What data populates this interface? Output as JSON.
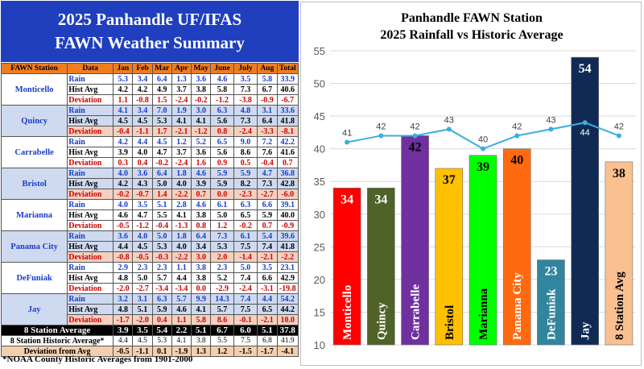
{
  "summary": {
    "title_line1": "2025 Panhandle UF/IFAS",
    "title_line2": "FAWN Weather Summary",
    "headers": [
      "FAWN Station",
      "Data",
      "Jan",
      "Feb",
      "Mar",
      "Apr",
      "May",
      "June",
      "July",
      "Aug",
      "Total"
    ],
    "row_labels": [
      "Rain",
      "Hist Avg",
      "Deviation"
    ],
    "stations": [
      {
        "name": "Monticello",
        "rain": [
          "5.3",
          "3.4",
          "6.4",
          "1.3",
          "3.6",
          "4.6",
          "3.5",
          "5.8",
          "33.9"
        ],
        "hist": [
          "4.2",
          "4.2",
          "4.9",
          "3.7",
          "3.8",
          "5.8",
          "7.3",
          "6.7",
          "40.6"
        ],
        "dev": [
          "1.1",
          "-0.8",
          "1.5",
          "-2.4",
          "-0.2",
          "-1.2",
          "-3.8",
          "-0.9",
          "-6.7"
        ]
      },
      {
        "name": "Quincy",
        "rain": [
          "4.1",
          "3.4",
          "7.0",
          "1.9",
          "3.0",
          "6.3",
          "4.8",
          "3.1",
          "33.6"
        ],
        "hist": [
          "4.5",
          "4.5",
          "5.3",
          "4.1",
          "4.1",
          "5.6",
          "7.3",
          "6.4",
          "41.8"
        ],
        "dev": [
          "-0.4",
          "-1.1",
          "1.7",
          "-2.1",
          "-1.2",
          "0.8",
          "-2.4",
          "-3.3",
          "-8.1"
        ]
      },
      {
        "name": "Carrabelle",
        "rain": [
          "4.2",
          "4.4",
          "4.5",
          "1.2",
          "5.2",
          "6.5",
          "9.0",
          "7.2",
          "42.2"
        ],
        "hist": [
          "3.9",
          "4.0",
          "4.7",
          "3.7",
          "3.6",
          "5.6",
          "8.6",
          "7.6",
          "41.6"
        ],
        "dev": [
          "0.3",
          "0.4",
          "-0.2",
          "-2.4",
          "1.6",
          "0.9",
          "0.5",
          "-0.4",
          "0.7"
        ]
      },
      {
        "name": "Bristol",
        "rain": [
          "4.0",
          "3.6",
          "6.4",
          "1.8",
          "4.6",
          "5.9",
          "5.9",
          "4.7",
          "36.8"
        ],
        "hist": [
          "4.2",
          "4.3",
          "5.0",
          "4.0",
          "3.9",
          "5.9",
          "8.2",
          "7.3",
          "42.8"
        ],
        "dev": [
          "-0.2",
          "-0.7",
          "1.4",
          "-2.2",
          "0.7",
          "0.0",
          "-2.3",
          "-2.7",
          "-6.0"
        ]
      },
      {
        "name": "Marianna",
        "rain": [
          "4.0",
          "3.5",
          "5.1",
          "2.8",
          "4.6",
          "6.1",
          "6.3",
          "6.6",
          "39.1"
        ],
        "hist": [
          "4.6",
          "4.7",
          "5.5",
          "4.1",
          "3.8",
          "5.0",
          "6.5",
          "5.9",
          "40.0"
        ],
        "dev": [
          "-0.5",
          "-1.2",
          "-0.4",
          "-1.3",
          "0.8",
          "1.2",
          "-0.2",
          "0.7",
          "-0.9"
        ]
      },
      {
        "name": "Panama City",
        "rain": [
          "3.6",
          "4.0",
          "5.0",
          "1.8",
          "6.4",
          "7.3",
          "6.1",
          "5.4",
          "39.6"
        ],
        "hist": [
          "4.4",
          "4.5",
          "5.3",
          "4.0",
          "3.4",
          "5.3",
          "7.5",
          "7.4",
          "41.8"
        ],
        "dev": [
          "-0.8",
          "-0.5",
          "-0.3",
          "-2.2",
          "3.0",
          "2.0",
          "-1.4",
          "-2.1",
          "-2.2"
        ]
      },
      {
        "name": "DeFuniak",
        "rain": [
          "2.9",
          "2.3",
          "2.3",
          "1.1",
          "3.8",
          "2.3",
          "5.0",
          "3.5",
          "23.1"
        ],
        "hist": [
          "4.8",
          "5.0",
          "5.7",
          "4.4",
          "3.8",
          "5.2",
          "7.4",
          "6.6",
          "42.9"
        ],
        "dev": [
          "-2.0",
          "-2.7",
          "-3.4",
          "-3.4",
          "0.0",
          "-2.9",
          "-2.4",
          "-3.1",
          "-19.8"
        ]
      },
      {
        "name": "Jay",
        "rain": [
          "3.2",
          "3.1",
          "6.3",
          "5.7",
          "9.9",
          "14.3",
          "7.4",
          "4.4",
          "54.2"
        ],
        "hist": [
          "4.8",
          "5.1",
          "5.9",
          "4.6",
          "4.1",
          "5.7",
          "7.5",
          "6.5",
          "44.2"
        ],
        "dev": [
          "-1.7",
          "-2.0",
          "0.4",
          "1.1",
          "5.8",
          "8.6",
          "-0.1",
          "-2.1",
          "10.0"
        ]
      }
    ],
    "station_avg_label": "8 Station Average",
    "station_avg": [
      "3.9",
      "3.5",
      "5.4",
      "2.2",
      "5.1",
      "6.7",
      "6.0",
      "5.1",
      "37.8"
    ],
    "station_hist_label": "8 Station Historic Average*",
    "station_hist": [
      "4.4",
      "4.5",
      "5.3",
      "4.1",
      "3.8",
      "5.5",
      "7.5",
      "6.8",
      "41.9"
    ],
    "station_dev_label": "Deviation from Avg",
    "station_dev": [
      "-0.5",
      "-1.1",
      "0.1",
      "-1.9",
      "1.3",
      "1.2",
      "-1.5",
      "-1.7",
      "-4.1"
    ],
    "footnote": "*NOAA County Historic Averages from 1901-2000"
  },
  "chart_data": {
    "type": "bar",
    "title": "Panhandle FAWN Station",
    "subtitle": "2025 Rainfall vs Historic Average",
    "categories": [
      "Monticello",
      "Quincy",
      "Carrabelle",
      "Bristol",
      "Marianna",
      "Panama City",
      "DeFuniak",
      "Jay",
      "8 Station Avg"
    ],
    "series": [
      {
        "values": [
          34,
          34,
          42,
          37,
          39,
          40,
          23,
          54,
          38
        ]
      },
      {
        "type": "line",
        "values": [
          41,
          42,
          42,
          43,
          40,
          42,
          43,
          44,
          42
        ]
      }
    ],
    "bar_colors": [
      "#ff0000",
      "#4f6228",
      "#7030a0",
      "#ffc000",
      "#00ff00",
      "#ff6a10",
      "#31859c",
      "#102a54",
      "#fac090"
    ],
    "bar_label_colors": [
      "#ffffff",
      "#ffffff",
      "#000000",
      "#000000",
      "#000000",
      "#000000",
      "#ffffff",
      "#ffffff",
      "#000000"
    ],
    "category_label_colors": [
      "#ffffff",
      "#ffffff",
      "#ffffff",
      "#000000",
      "#000000",
      "#ffffff",
      "#ffffff",
      "#ffffff",
      "#000000"
    ],
    "line_color": "#3aaee0",
    "y_ticks": [
      10,
      15,
      20,
      25,
      30,
      35,
      40,
      45,
      50,
      55
    ],
    "ylim": [
      10,
      55
    ],
    "grid": true,
    "legend": "none"
  }
}
